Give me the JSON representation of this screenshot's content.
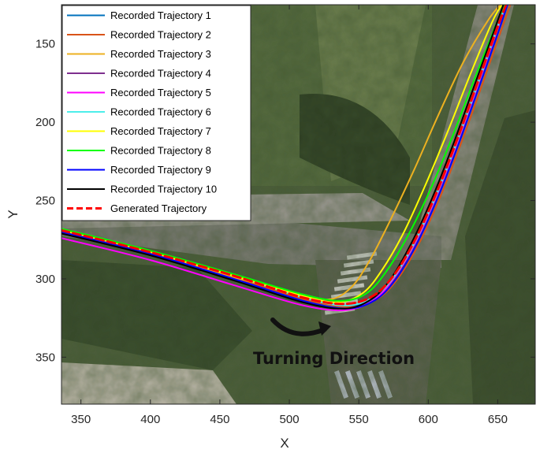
{
  "chart_data": {
    "type": "line",
    "title": "",
    "xlabel": "X",
    "ylabel": "Y",
    "xlim": [
      336,
      677
    ],
    "ylim": [
      125,
      380
    ],
    "y_reversed": true,
    "xticks": [
      350,
      400,
      450,
      500,
      550,
      600,
      650
    ],
    "yticks": [
      150,
      200,
      250,
      300,
      350
    ],
    "grid": false,
    "legend_position": "top-left",
    "background": "aerial photograph",
    "annotation": "Turning Direction",
    "series": [
      {
        "name": "Recorded Trajectory 1",
        "color": "#0072BD",
        "dash": "solid",
        "x": [
          336,
          400,
          460,
          510,
          540,
          560,
          575,
          590,
          605,
          620,
          635,
          650,
          656
        ],
        "y": [
          270,
          284,
          299,
          313,
          318,
          313,
          300,
          278,
          249,
          215,
          178,
          140,
          125
        ]
      },
      {
        "name": "Recorded Trajectory 2",
        "color": "#D95319",
        "dash": "solid",
        "x": [
          336,
          400,
          460,
          510,
          543,
          563,
          578,
          593,
          608,
          623,
          638,
          653,
          659
        ],
        "y": [
          270,
          284,
          299,
          313,
          318,
          313,
          300,
          278,
          249,
          215,
          178,
          140,
          125
        ]
      },
      {
        "name": "Recorded Trajectory 3",
        "color": "#EDB120",
        "dash": "solid",
        "x": [
          336,
          400,
          460,
          510,
          530,
          545,
          558,
          573,
          590,
          607,
          625,
          643,
          652
        ],
        "y": [
          270,
          284,
          299,
          310,
          313,
          305,
          288,
          262,
          230,
          196,
          162,
          135,
          125
        ]
      },
      {
        "name": "Recorded Trajectory 4",
        "color": "#7E2F8E",
        "dash": "solid",
        "x": [
          336,
          400,
          460,
          510,
          540,
          560,
          574,
          589,
          604,
          619,
          634,
          649,
          655
        ],
        "y": [
          271,
          285,
          300,
          314,
          319,
          314,
          301,
          279,
          250,
          216,
          179,
          141,
          125
        ]
      },
      {
        "name": "Recorded Trajectory 5",
        "color": "#FF00FF",
        "dash": "solid",
        "x": [
          336,
          400,
          460,
          510,
          540,
          560,
          575,
          590,
          605,
          620,
          635,
          650,
          656
        ],
        "y": [
          274,
          288,
          304,
          317,
          320,
          314,
          300,
          278,
          249,
          215,
          178,
          140,
          125
        ]
      },
      {
        "name": "Recorded Trajectory 6",
        "color": "#4DEEEA",
        "dash": "solid",
        "x": [
          336,
          400,
          460,
          510,
          540,
          560,
          575,
          590,
          605,
          620,
          635,
          650,
          656
        ],
        "y": [
          269,
          283,
          298,
          312,
          317,
          312,
          299,
          277,
          248,
          214,
          177,
          139,
          125
        ]
      },
      {
        "name": "Recorded Trajectory 7",
        "color": "#FFFF00",
        "dash": "solid",
        "x": [
          336,
          400,
          460,
          510,
          535,
          553,
          567,
          582,
          598,
          614,
          630,
          646,
          653
        ],
        "y": [
          269,
          283,
          298,
          311,
          315,
          309,
          294,
          271,
          240,
          206,
          170,
          136,
          125
        ]
      },
      {
        "name": "Recorded Trajectory 8",
        "color": "#00FF00",
        "dash": "solid",
        "x": [
          336,
          400,
          460,
          510,
          538,
          556,
          570,
          585,
          601,
          617,
          633,
          649,
          655
        ],
        "y": [
          268,
          282,
          297,
          310,
          314,
          309,
          295,
          273,
          244,
          210,
          173,
          137,
          125
        ]
      },
      {
        "name": "Recorded Trajectory 9",
        "color": "#0000FF",
        "dash": "solid",
        "x": [
          336,
          400,
          460,
          510,
          541,
          561,
          576,
          591,
          606,
          621,
          636,
          651,
          657
        ],
        "y": [
          270,
          284,
          300,
          314,
          319,
          314,
          301,
          279,
          250,
          216,
          179,
          141,
          125
        ]
      },
      {
        "name": "Recorded Trajectory 10",
        "color": "#000000",
        "dash": "solid",
        "x": [
          336,
          400,
          460,
          510,
          540,
          559,
          573,
          588,
          603,
          618,
          633,
          648,
          654
        ],
        "y": [
          271,
          285,
          301,
          315,
          319,
          313,
          300,
          277,
          248,
          214,
          177,
          140,
          125
        ]
      },
      {
        "name": "Generated Trajectory",
        "color": "#FF0000",
        "dash": "dashed",
        "x": [
          336,
          400,
          460,
          510,
          540,
          560,
          575,
          590,
          605,
          620,
          635,
          650,
          656
        ],
        "y": [
          269,
          283,
          298,
          312,
          316,
          311,
          298,
          276,
          247,
          213,
          176,
          139,
          125
        ]
      }
    ]
  }
}
